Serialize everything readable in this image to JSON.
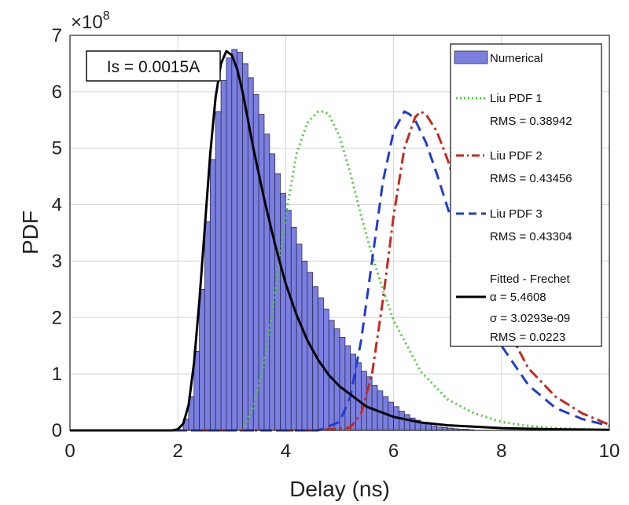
{
  "chart_data": {
    "type": "line",
    "title": "",
    "xlabel": "Delay (ns)",
    "ylabel": "PDF",
    "xlim": [
      0,
      10
    ],
    "ylim": [
      0,
      7
    ],
    "y_multiplier_label": "×10",
    "y_multiplier_exponent": "8",
    "x_ticks": [
      "0",
      "2",
      "4",
      "6",
      "8",
      "10"
    ],
    "y_ticks": [
      "0",
      "1",
      "2",
      "3",
      "4",
      "5",
      "6",
      "7"
    ],
    "grid": true,
    "legend_position": "top-right",
    "annotation": "Is = 0.0015A",
    "histogram": {
      "name": "Numerical",
      "color": "#7b7fe0",
      "bin_width": 0.1,
      "bin_start": 2.1,
      "values": [
        0.2,
        0.6,
        1.4,
        2.5,
        3.7,
        4.8,
        5.65,
        6.2,
        6.6,
        6.75,
        6.7,
        6.5,
        6.25,
        5.95,
        5.6,
        5.25,
        4.9,
        4.55,
        4.2,
        3.9,
        3.6,
        3.3,
        3.0,
        2.8,
        2.55,
        2.35,
        2.15,
        1.95,
        1.8,
        1.65,
        1.5,
        1.35,
        1.2,
        1.05,
        0.95,
        0.8,
        0.7,
        0.6,
        0.5,
        0.42,
        0.34,
        0.28,
        0.22,
        0.18,
        0.14,
        0.11,
        0.08,
        0.06,
        0.05,
        0.04,
        0.03,
        0.02,
        0.02,
        0.01
      ]
    },
    "series": [
      {
        "name": "Liu PDF 1",
        "rms": "RMS = 0.38942",
        "color": "#4ccc3a",
        "style": "dotted",
        "x": [
          3.2,
          3.4,
          3.6,
          3.8,
          4.0,
          4.2,
          4.4,
          4.6,
          4.7,
          4.8,
          5.0,
          5.2,
          5.4,
          5.6,
          5.8,
          6.0,
          6.5,
          7.0,
          7.5,
          8.0,
          8.5,
          9.0,
          9.5,
          10.0
        ],
        "y": [
          0.0,
          0.4,
          1.2,
          2.4,
          3.8,
          4.9,
          5.45,
          5.65,
          5.65,
          5.6,
          5.2,
          4.55,
          3.8,
          3.1,
          2.5,
          1.95,
          1.05,
          0.55,
          0.3,
          0.15,
          0.08,
          0.04,
          0.02,
          0.01
        ]
      },
      {
        "name": "Liu PDF 2",
        "rms": "RMS = 0.43456",
        "color": "#c8281e",
        "style": "dashdot",
        "x": [
          0.0,
          2.0,
          4.5,
          5.2,
          5.4,
          5.6,
          5.8,
          6.0,
          6.2,
          6.4,
          6.5,
          6.6,
          6.8,
          7.0,
          7.2,
          7.4,
          7.6,
          7.8,
          8.0,
          8.5,
          9.0,
          9.5,
          10.0
        ],
        "y": [
          0.0,
          0.0,
          0.0,
          0.05,
          0.3,
          1.0,
          2.3,
          3.8,
          5.0,
          5.55,
          5.65,
          5.6,
          5.3,
          4.8,
          4.2,
          3.6,
          3.0,
          2.5,
          2.0,
          1.1,
          0.6,
          0.3,
          0.1
        ]
      },
      {
        "name": "Liu PDF 3",
        "rms": "RMS = 0.43304",
        "color": "#1f3cd6",
        "style": "dashed",
        "x": [
          0.0,
          2.0,
          4.6,
          5.0,
          5.2,
          5.4,
          5.6,
          5.8,
          6.0,
          6.2,
          6.3,
          6.4,
          6.6,
          6.8,
          7.0,
          7.2,
          7.4,
          7.6,
          7.8,
          8.0,
          8.5,
          9.0,
          9.5,
          10.0
        ],
        "y": [
          0.0,
          0.0,
          0.0,
          0.15,
          0.6,
          1.6,
          3.0,
          4.4,
          5.3,
          5.65,
          5.6,
          5.5,
          5.1,
          4.55,
          3.95,
          3.35,
          2.8,
          2.3,
          1.85,
          1.5,
          0.8,
          0.4,
          0.2,
          0.08
        ]
      },
      {
        "name": "Fitted - Frechet",
        "params": [
          "α = 5.4608",
          "σ = 3.0293e-09",
          "RMS = 0.0223"
        ],
        "color": "#000000",
        "style": "solid",
        "x": [
          0.0,
          1.9,
          2.0,
          2.1,
          2.2,
          2.3,
          2.4,
          2.5,
          2.6,
          2.7,
          2.8,
          2.9,
          3.0,
          3.1,
          3.2,
          3.3,
          3.4,
          3.5,
          3.6,
          3.8,
          4.0,
          4.2,
          4.4,
          4.6,
          4.8,
          5.0,
          5.5,
          6.0,
          6.5,
          7.0,
          8.0,
          9.0,
          10.0
        ],
        "y": [
          0.0,
          0.0,
          0.02,
          0.12,
          0.45,
          1.2,
          2.3,
          3.6,
          4.9,
          5.9,
          6.5,
          6.72,
          6.65,
          6.4,
          6.0,
          5.5,
          5.0,
          4.55,
          4.1,
          3.3,
          2.6,
          2.05,
          1.6,
          1.25,
          0.98,
          0.78,
          0.42,
          0.24,
          0.14,
          0.09,
          0.04,
          0.02,
          0.01
        ]
      }
    ]
  }
}
